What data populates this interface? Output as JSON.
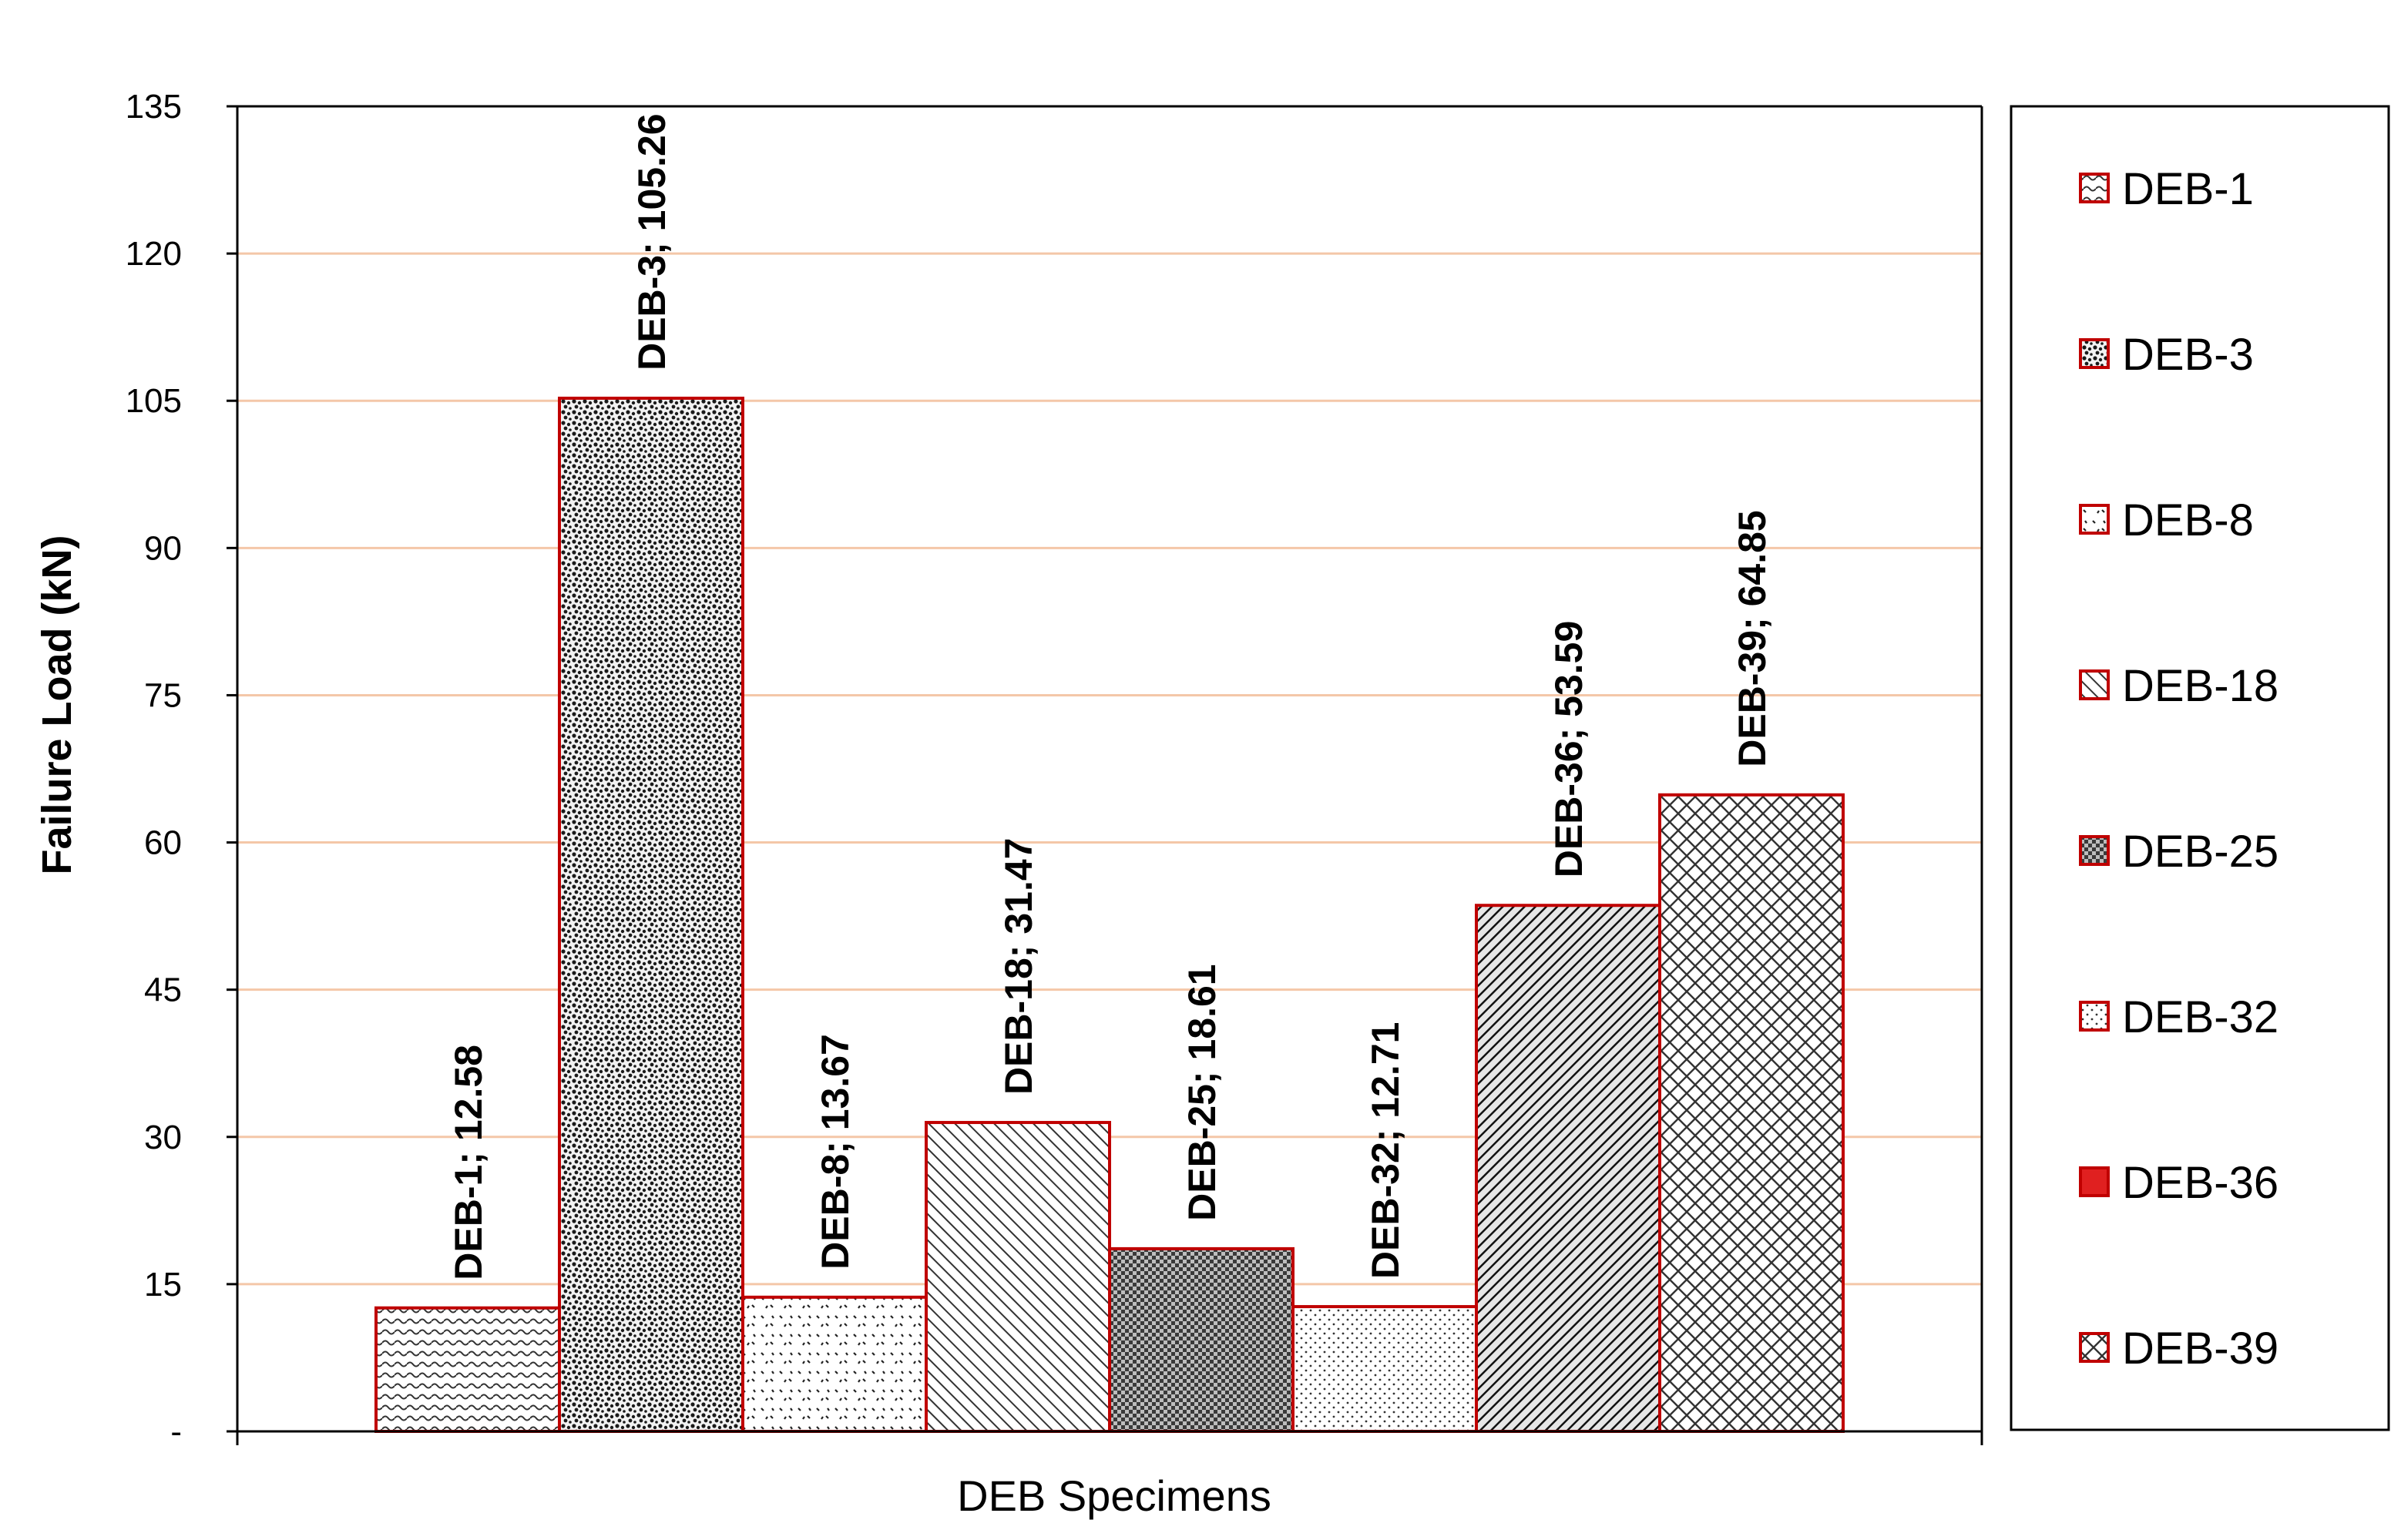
{
  "chart_data": {
    "type": "bar",
    "categories": [
      "DEB-1",
      "DEB-3",
      "DEB-8",
      "DEB-18",
      "DEB-25",
      "DEB-32",
      "DEB-36",
      "DEB-39"
    ],
    "values": [
      12.58,
      105.26,
      13.67,
      31.47,
      18.61,
      12.71,
      53.59,
      64.85
    ],
    "data_labels": [
      "DEB-1; 12.58",
      "DEB-3; 105.26",
      "DEB-8; 13.67",
      "DEB-18; 31.47",
      "DEB-25; 18.61",
      "DEB-32; 12.71",
      "DEB-36; 53.59",
      "DEB-39; 64.85"
    ],
    "patterns": [
      "wave",
      "stipple-dense",
      "dots-sparse",
      "diagonal",
      "dark-checker",
      "dots-fine",
      "diagonal-dark",
      "crosshatch"
    ],
    "xlabel": "DEB Specimens",
    "ylabel": "Failure Load (kN)",
    "ylim": [
      0,
      135
    ],
    "yticks": [
      0,
      15,
      30,
      45,
      60,
      75,
      90,
      105,
      120,
      135
    ],
    "ytick_labels": [
      "-",
      "15",
      "30",
      "45",
      "60",
      "75",
      "90",
      "105",
      "120",
      "135"
    ],
    "grid": true,
    "legend_position": "right",
    "legend": [
      "DEB-1",
      "DEB-3",
      "DEB-8",
      "DEB-18",
      "DEB-25",
      "DEB-32",
      "DEB-36",
      "DEB-39"
    ],
    "colors": {
      "bar_border": "#c00000",
      "gridline": "#f4c7a8",
      "axis": "#000000",
      "legend_swatch_36": "#e02020"
    }
  }
}
